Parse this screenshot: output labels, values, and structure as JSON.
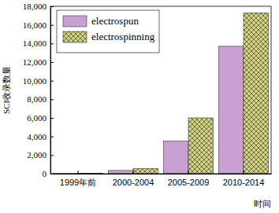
{
  "chart_data": {
    "type": "bar",
    "x_label": "时间",
    "y_label": "SCI收录数量",
    "categories": [
      "1999年前",
      "2000-2004",
      "2005-2009",
      "2010-2014"
    ],
    "series": [
      {
        "name": "electrospun",
        "color": "#c9a0d2",
        "values": [
          20,
          350,
          3500,
          13700
        ]
      },
      {
        "name": "electrospinning",
        "color": "#d2d282",
        "values": [
          30,
          550,
          6000,
          17300
        ]
      }
    ],
    "ylim": [
      0,
      18000
    ],
    "yticks": [
      0,
      {
        "value": 2000,
        "label": "2,000"
      },
      {
        "value": 4000,
        "label": "4,000"
      },
      {
        "value": 6000,
        "label": "6,000"
      },
      {
        "value": 8000,
        "label": "8,000"
      },
      {
        "value": 10000,
        "label": "10,000"
      },
      {
        "value": 12000,
        "label": "12,000"
      },
      {
        "value": 14000,
        "label": "14,000"
      },
      {
        "value": 16000,
        "label": "16,000"
      },
      {
        "value": 18000,
        "label": "18,000"
      }
    ],
    "legend": "upper left",
    "grid": false
  }
}
